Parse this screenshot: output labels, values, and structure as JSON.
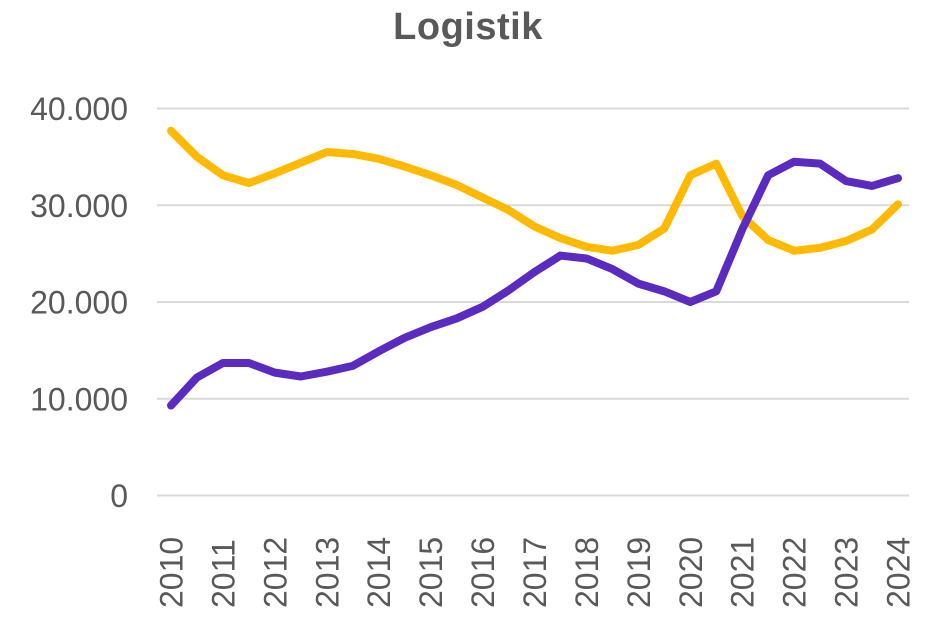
{
  "page": {
    "background": "#FFFFFF",
    "text_color": "#595959",
    "gridline_color": "#D9D9D9"
  },
  "chart_data": {
    "type": "line",
    "title": "Logistik",
    "xlabel": "",
    "ylabel": "",
    "grid": "horizontal-only",
    "legend": "none",
    "ylim": [
      0,
      40000
    ],
    "x": [
      2010,
      2010.5,
      2011,
      2011.5,
      2012,
      2012.5,
      2013,
      2013.5,
      2014,
      2014.5,
      2015,
      2015.5,
      2016,
      2016.5,
      2017,
      2017.5,
      2018,
      2018.5,
      2019,
      2019.5,
      2020,
      2020.5,
      2021,
      2021.5,
      2022,
      2022.5,
      2023,
      2023.5,
      2024
    ],
    "x_tick_labels": [
      "2010",
      "2011",
      "2012",
      "2013",
      "2014",
      "2015",
      "2016",
      "2017",
      "2018",
      "2019",
      "2020",
      "2021",
      "2022",
      "2023",
      "2024"
    ],
    "y_ticks": [
      {
        "value": 40000,
        "label": "40.000"
      },
      {
        "value": 30000,
        "label": "30.000"
      },
      {
        "value": 20000,
        "label": "20.000"
      },
      {
        "value": 10000,
        "label": "10.000"
      },
      {
        "value": 0,
        "label": "0"
      }
    ],
    "series": [
      {
        "id": "gold",
        "color": "#FFB900",
        "values": [
          37700,
          35000,
          33100,
          32300,
          33300,
          34400,
          35500,
          35300,
          34800,
          34000,
          33100,
          32100,
          30800,
          29500,
          27800,
          26600,
          25700,
          25300,
          25900,
          27600,
          33100,
          34300,
          28900,
          26400,
          25300,
          25600,
          26300,
          27500,
          30100
        ]
      },
      {
        "id": "violet",
        "color": "#5B2BC0",
        "values": [
          9300,
          12200,
          13700,
          13700,
          12700,
          12300,
          12800,
          13400,
          14900,
          16300,
          17400,
          18300,
          19500,
          21200,
          23100,
          24800,
          24500,
          23400,
          21900,
          21100,
          20000,
          21100,
          27500,
          33100,
          34500,
          34300,
          32500,
          32000,
          32800
        ]
      }
    ]
  }
}
